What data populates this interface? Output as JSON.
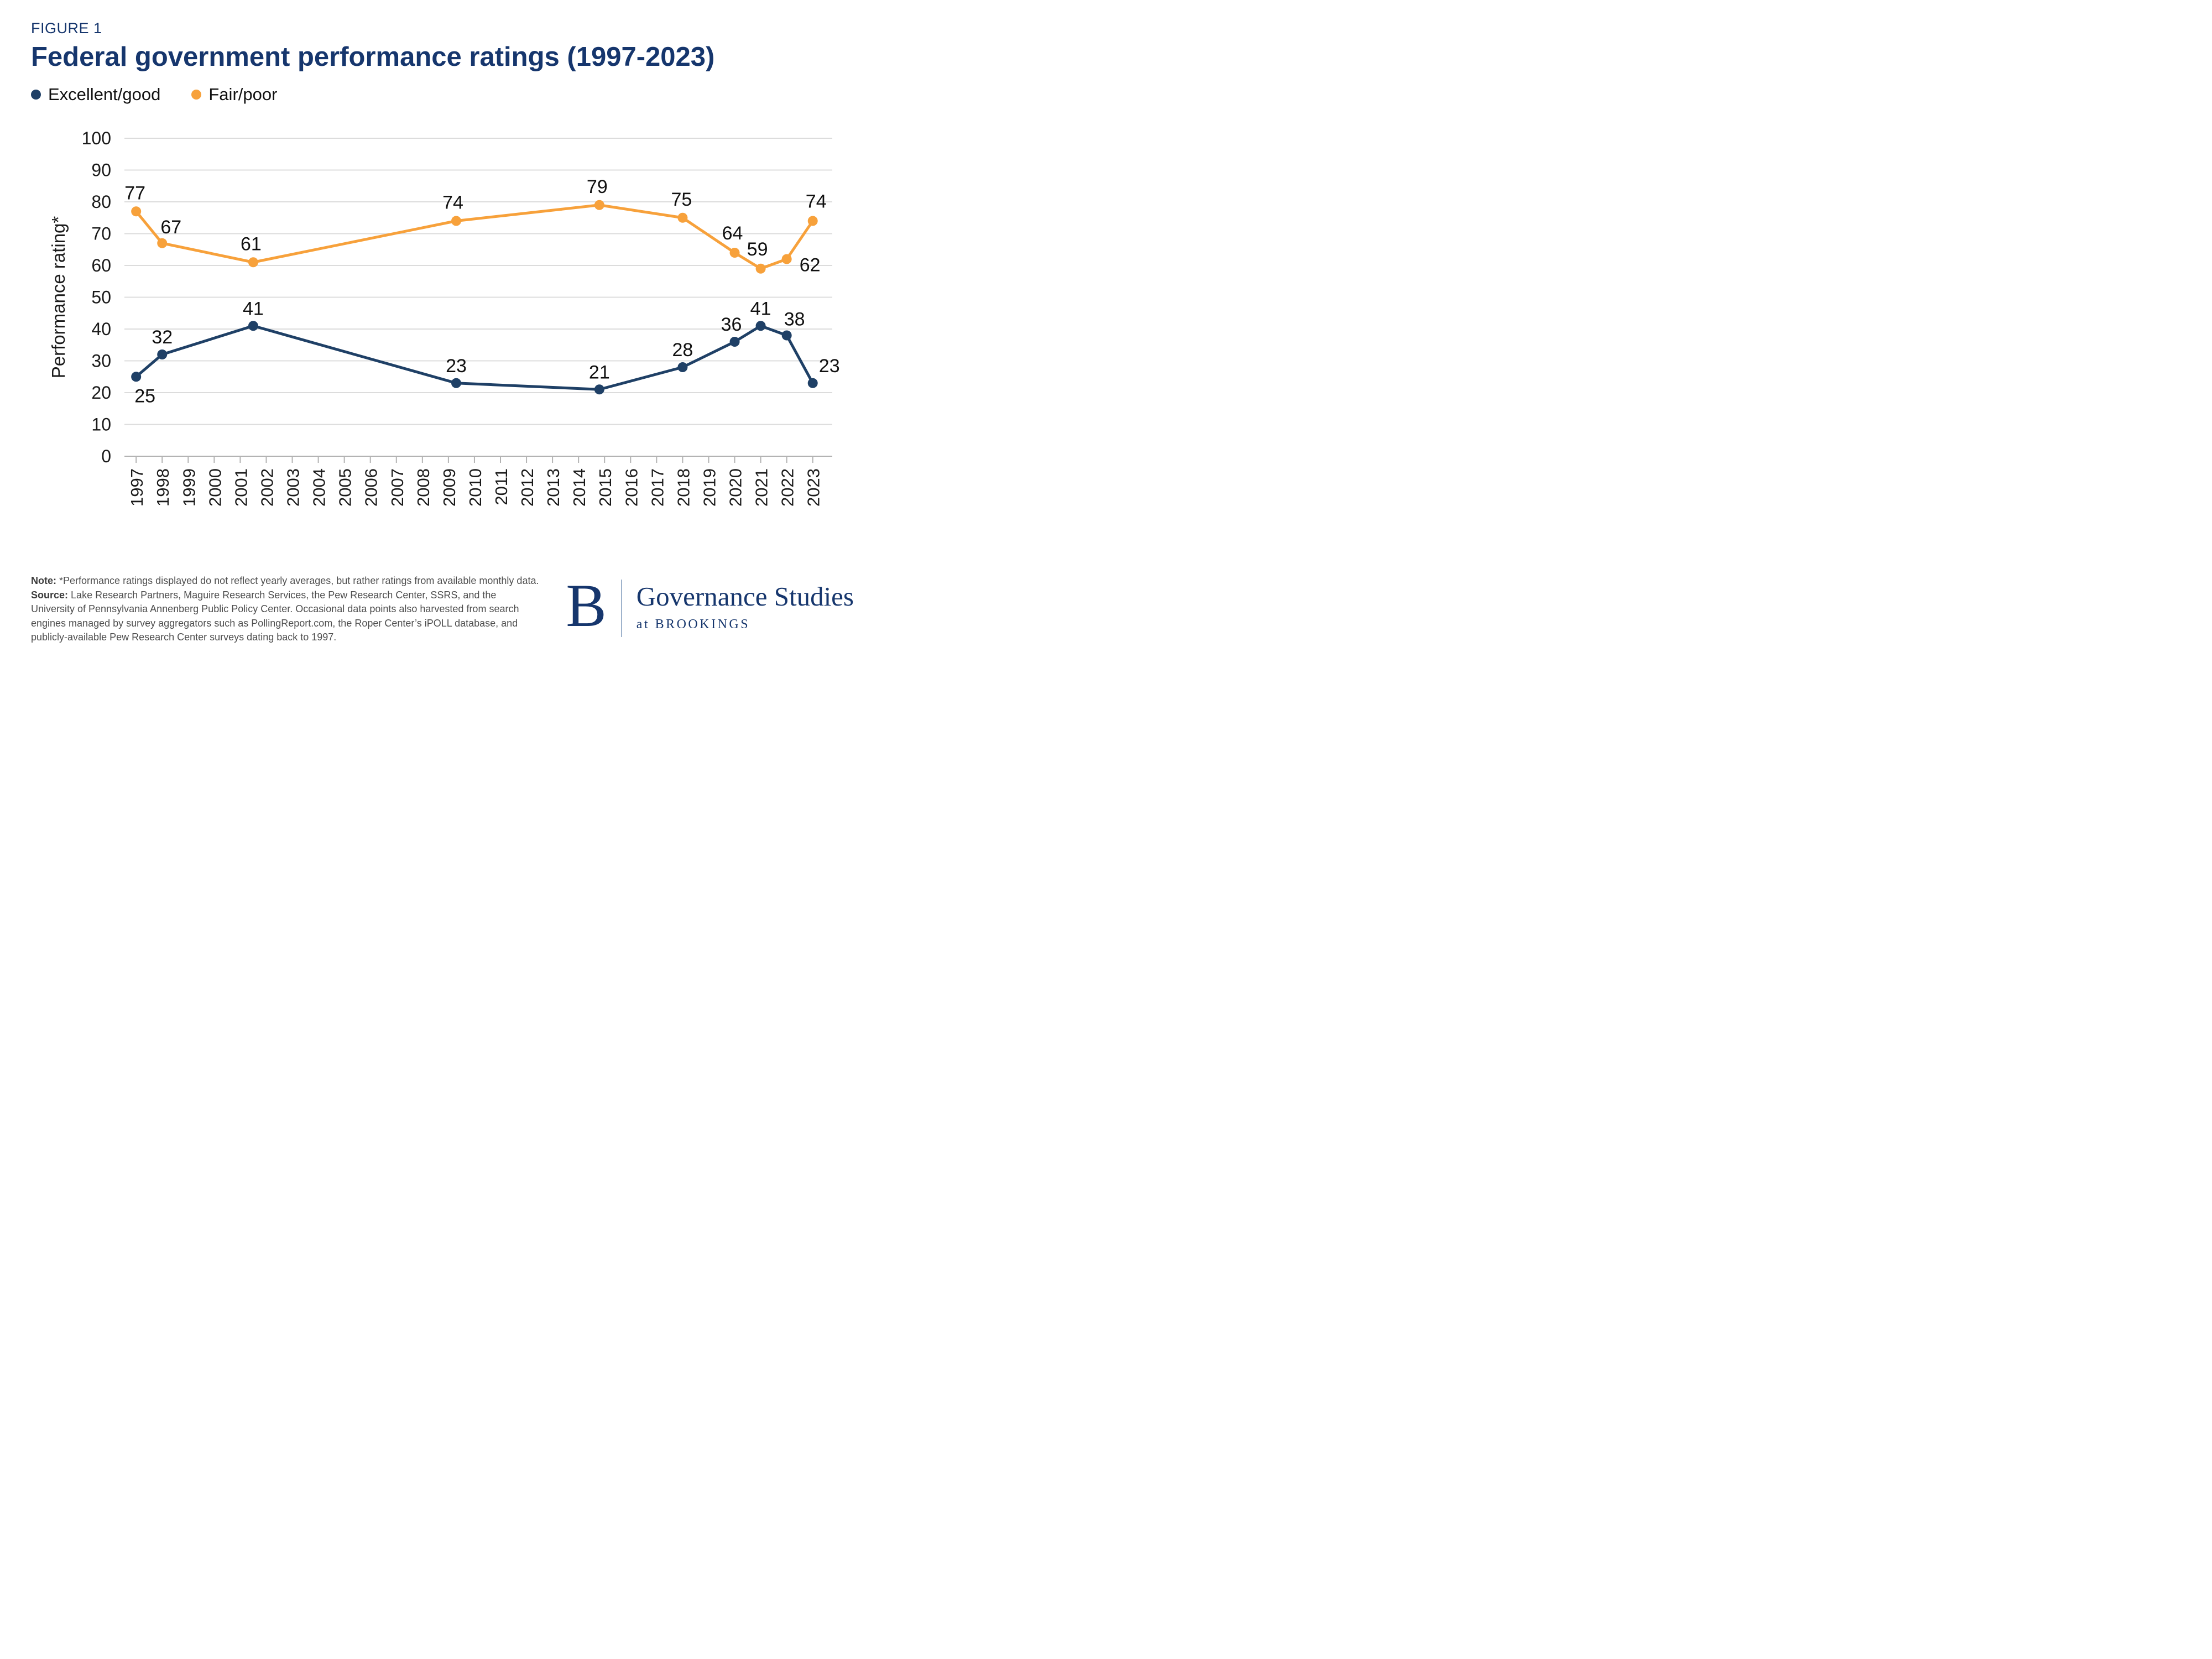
{
  "figure_label": "FIGURE 1",
  "title": "Federal government performance ratings (1997-2023)",
  "colors": {
    "brand_navy": "#16366d",
    "series_navy": "#1f4066",
    "series_orange": "#f7a13b",
    "gridline": "#dcdcdc",
    "axis": "#b3b3b3"
  },
  "legend": [
    {
      "label": "Excellent/good",
      "color": "#1f4066"
    },
    {
      "label": "Fair/poor",
      "color": "#f7a13b"
    }
  ],
  "chart_data": {
    "type": "line",
    "title": "Federal government performance ratings (1997-2023)",
    "xlabel": "",
    "ylabel": "Performance rating*",
    "ylim": [
      0,
      100
    ],
    "ytick_step": 10,
    "grid": true,
    "legend_position": "top-left",
    "x_domain": [
      1996.55,
      2023.75
    ],
    "x_ticks": [
      1997,
      1998,
      1999,
      2000,
      2001,
      2002,
      2003,
      2004,
      2005,
      2006,
      2007,
      2008,
      2009,
      2010,
      2011,
      2012,
      2013,
      2014,
      2015,
      2016,
      2017,
      2018,
      2019,
      2020,
      2021,
      2022,
      2023
    ],
    "series": [
      {
        "name": "Fair/poor",
        "color": "#f7a13b",
        "points": [
          {
            "x": 1997,
            "y": 77,
            "label": "77",
            "dx": -2,
            "dy": -22
          },
          {
            "x": 1998,
            "y": 67,
            "label": "67",
            "dx": 16,
            "dy": -18
          },
          {
            "x": 2001.5,
            "y": 61,
            "label": "61",
            "dx": -4,
            "dy": -22
          },
          {
            "x": 2009.3,
            "y": 74,
            "label": "74",
            "dx": -6,
            "dy": -22
          },
          {
            "x": 2014.8,
            "y": 79,
            "label": "79",
            "dx": -4,
            "dy": -22
          },
          {
            "x": 2018,
            "y": 75,
            "label": "75",
            "dx": -2,
            "dy": -22
          },
          {
            "x": 2020,
            "y": 64,
            "label": "64",
            "dx": -4,
            "dy": -24
          },
          {
            "x": 2021,
            "y": 59,
            "label": "59",
            "dx": -6,
            "dy": -24
          },
          {
            "x": 2022,
            "y": 62,
            "label": "62",
            "dx": 42,
            "dy": 22
          },
          {
            "x": 2023,
            "y": 74,
            "label": "74",
            "dx": 6,
            "dy": -24
          }
        ]
      },
      {
        "name": "Excellent/good",
        "color": "#1f4066",
        "points": [
          {
            "x": 1997,
            "y": 25,
            "label": "25",
            "dx": 16,
            "dy": 46
          },
          {
            "x": 1998,
            "y": 32,
            "label": "32",
            "dx": 0,
            "dy": -20
          },
          {
            "x": 2001.5,
            "y": 41,
            "label": "41",
            "dx": 0,
            "dy": -20
          },
          {
            "x": 2009.3,
            "y": 23,
            "label": "23",
            "dx": 0,
            "dy": -20
          },
          {
            "x": 2014.8,
            "y": 21,
            "label": "21",
            "dx": 0,
            "dy": -20
          },
          {
            "x": 2018,
            "y": 28,
            "label": "28",
            "dx": 0,
            "dy": -20
          },
          {
            "x": 2020,
            "y": 36,
            "label": "36",
            "dx": -6,
            "dy": -20
          },
          {
            "x": 2021,
            "y": 41,
            "label": "41",
            "dx": 0,
            "dy": -20
          },
          {
            "x": 2022,
            "y": 38,
            "label": "38",
            "dx": 14,
            "dy": -18
          },
          {
            "x": 2023,
            "y": 23,
            "label": "23",
            "dx": 30,
            "dy": -20
          }
        ]
      }
    ]
  },
  "footer": {
    "note_label": "Note:",
    "note": "*Performance ratings displayed do not reflect yearly averages, but rather ratings from available monthly data.",
    "source_label": "Source:",
    "source": "Lake Research Partners, Maguire Research Services, the Pew Research Center, SSRS, and the University of Pennsylvania Annenberg Public Policy Center. Occasional data points also harvested from search engines managed by survey aggregators such as PollingReport.com, the Roper Center’s iPOLL database, and publicly-available Pew Research Center surveys dating back to 1997."
  },
  "logo": {
    "letter": "B",
    "name": "Governance Studies",
    "sub": "at BROOKINGS"
  }
}
